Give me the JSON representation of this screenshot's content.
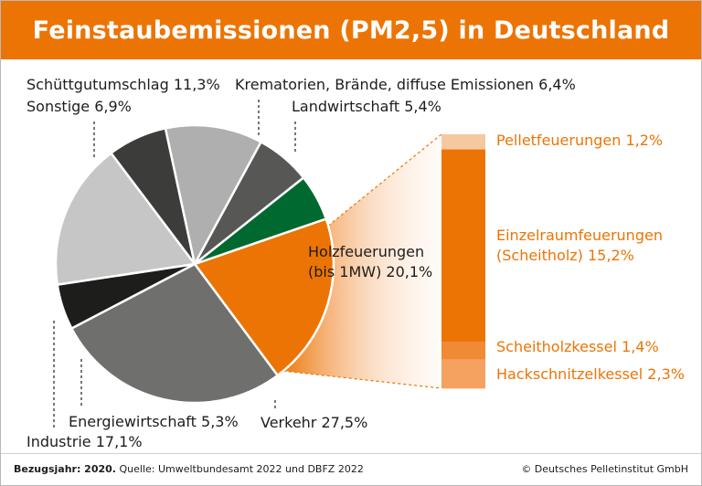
{
  "chart_data": {
    "type": "pie",
    "title": "Feinstaubemissionen (PM2,5) in Deutschland",
    "unit": "%",
    "slices": [
      {
        "name": "Holzfeuerungen (bis 1MW)",
        "value": 20.1,
        "color": "#ec7404",
        "label_lines": [
          "Holzfeuerungen",
          "(bis 1MW) 20,1%"
        ]
      },
      {
        "name": "Verkehr",
        "value": 27.5,
        "color": "#6f6f6e",
        "label_lines": [
          "Verkehr 27,5%"
        ]
      },
      {
        "name": "Energiewirtschaft",
        "value": 5.3,
        "color": "#1d1d1b",
        "label_lines": [
          "Energiewirtschaft 5,3%"
        ]
      },
      {
        "name": "Industrie",
        "value": 17.1,
        "color": "#c6c6c6",
        "label_lines": [
          "Industrie 17,1%"
        ]
      },
      {
        "name": "Sonstige",
        "value": 6.9,
        "color": "#3c3c3b",
        "label_lines": [
          "Sonstige 6,9%"
        ]
      },
      {
        "name": "Schüttgutumschlag",
        "value": 11.3,
        "color": "#afafaf",
        "label_lines": [
          "Schüttgutumschlag 11,3%"
        ]
      },
      {
        "name": "Krematorien, Brände, diffuse Emissionen",
        "value": 6.4,
        "color": "#575756",
        "label_lines": [
          "Krematorien, Brände, diffuse Emissionen 6,4%"
        ]
      },
      {
        "name": "Landwirtschaft",
        "value": 5.4,
        "color": "#006930",
        "label_lines": [
          "Landwirtschaft 5,4%"
        ]
      }
    ],
    "breakdown": {
      "of": "Holzfeuerungen (bis 1MW)",
      "type": "stacked-bar",
      "segments": [
        {
          "name": "Pelletfeuerungen",
          "value": 1.2,
          "color": "#f6c8a0",
          "label_lines": [
            "Pelletfeuerungen 1,2%"
          ]
        },
        {
          "name": "Einzelraumfeuerungen (Scheitholz)",
          "value": 15.2,
          "color": "#ec7404",
          "label_lines": [
            "Einzelraumfeuerungen",
            "(Scheitholz) 15,2%"
          ]
        },
        {
          "name": "Scheitholzkessel",
          "value": 1.4,
          "color": "#f08a35",
          "label_lines": [
            "Scheitholzkessel 1,4%"
          ]
        },
        {
          "name": "Hackschnitzelkessel",
          "value": 2.3,
          "color": "#f5a160",
          "label_lines": [
            "Hackschnitzelkessel 2,3%"
          ]
        }
      ],
      "label_color": "#ec7404"
    }
  },
  "footer": {
    "reference_label": "Bezugsjahr: 2020.",
    "source": "Quelle: Umweltbundesamt 2022 und DBFZ 2022",
    "copyright": "© Deutsches Pelletinstitut GmbH"
  }
}
